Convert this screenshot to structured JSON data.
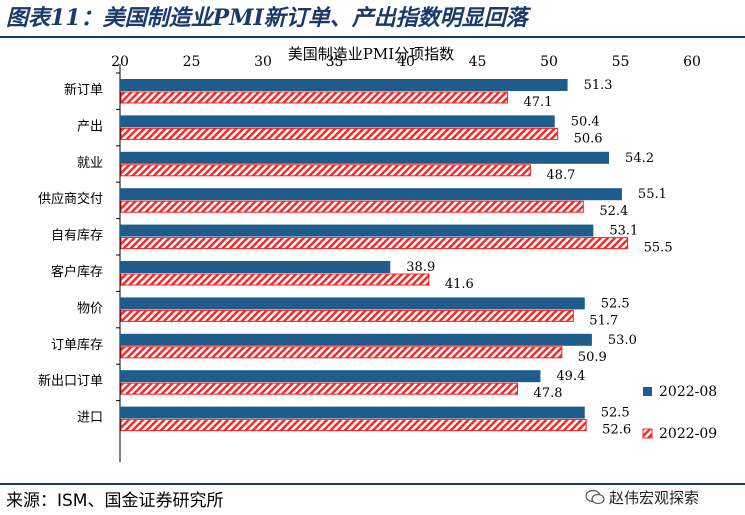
{
  "figure": {
    "title": "图表11：美国制造业PMI新订单、产出指数明显回落",
    "source": "来源：ISM、国金证券研究所",
    "watermark": "赵伟宏观探索"
  },
  "colors": {
    "title": "#1a3a6b",
    "series1": "#1f5c8b",
    "series2_stroke": "#ff2020",
    "series2_hatch": "#ff2020"
  },
  "chart_data": {
    "type": "bar",
    "orientation": "horizontal",
    "title": "美国制造业PMI分项指数",
    "categories": [
      "新订单",
      "产出",
      "就业",
      "供应商交付",
      "自有库存",
      "客户库存",
      "物价",
      "订单库存",
      "新出口订单",
      "进口"
    ],
    "series": [
      {
        "name": "2022-08",
        "values": [
          51.3,
          50.4,
          54.2,
          55.1,
          53.1,
          38.9,
          52.5,
          53.0,
          49.4,
          52.5
        ],
        "labels": [
          "51.3",
          "50.4",
          "54.2",
          "55.1",
          "53.1",
          "38.9",
          "52.5",
          "53.0",
          "49.4",
          "52.5"
        ]
      },
      {
        "name": "2022-09",
        "values": [
          47.1,
          50.6,
          48.7,
          52.4,
          55.5,
          41.6,
          51.7,
          50.9,
          47.8,
          52.6
        ],
        "labels": [
          "47.1",
          "50.6",
          "48.7",
          "52.4",
          "55.5",
          "41.6",
          "51.7",
          "50.9",
          "47.8",
          "52.6"
        ]
      }
    ],
    "xlim": [
      20,
      60
    ],
    "xticks": [
      "20",
      "25",
      "30",
      "35",
      "40",
      "45",
      "50",
      "55",
      "60"
    ],
    "axis_position": "top",
    "legend": "bottom-right",
    "grid": false
  }
}
